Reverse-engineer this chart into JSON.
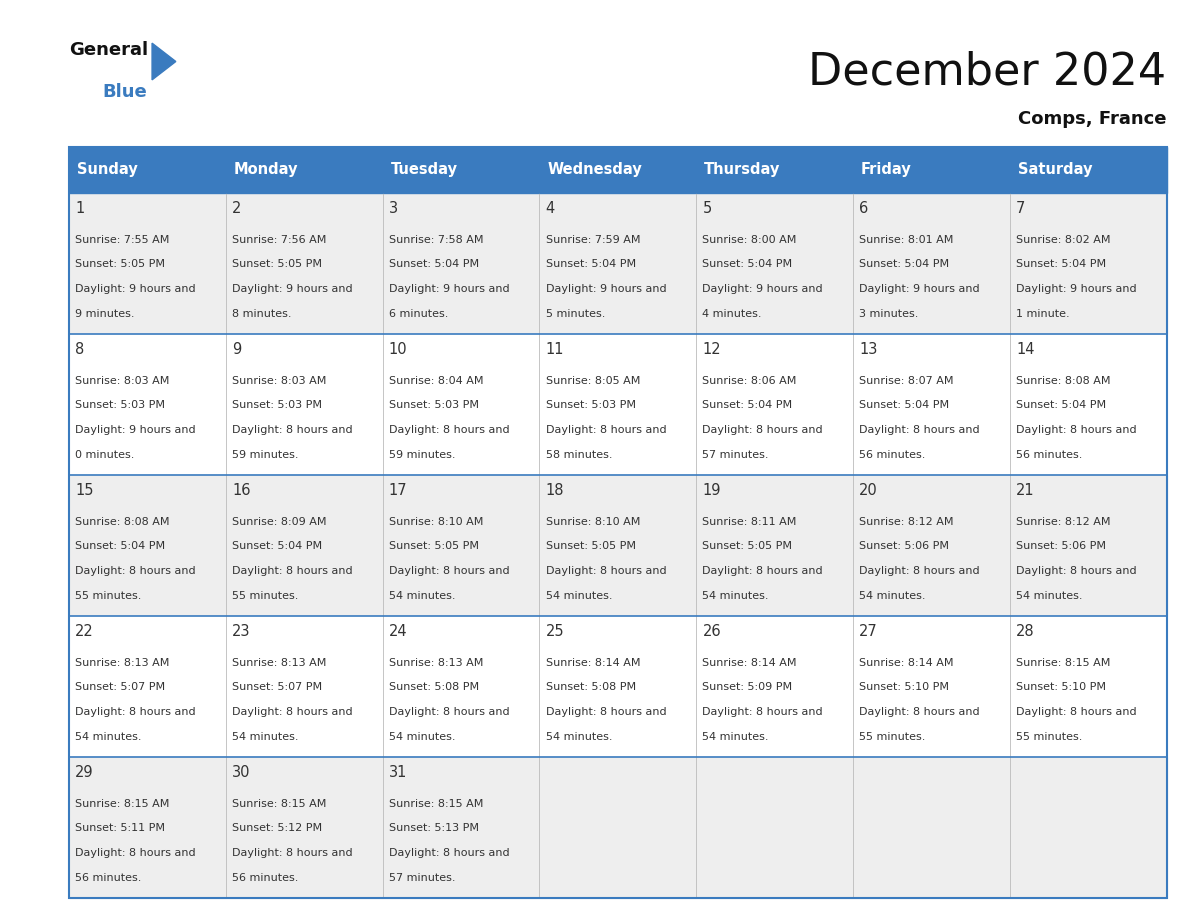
{
  "title": "December 2024",
  "subtitle": "Comps, France",
  "header_color": "#3a7bbf",
  "header_text_color": "#ffffff",
  "day_names": [
    "Sunday",
    "Monday",
    "Tuesday",
    "Wednesday",
    "Thursday",
    "Friday",
    "Saturday"
  ],
  "bg_color": "#ffffff",
  "cell_bg_even": "#eeeeee",
  "cell_bg_odd": "#ffffff",
  "separator_color": "#3a7bbf",
  "text_color": "#333333",
  "days": [
    {
      "date": 1,
      "col": 0,
      "row": 0,
      "sunrise": "7:55 AM",
      "sunset": "5:05 PM",
      "daylight": "9 hours and 9 minutes."
    },
    {
      "date": 2,
      "col": 1,
      "row": 0,
      "sunrise": "7:56 AM",
      "sunset": "5:05 PM",
      "daylight": "9 hours and 8 minutes."
    },
    {
      "date": 3,
      "col": 2,
      "row": 0,
      "sunrise": "7:58 AM",
      "sunset": "5:04 PM",
      "daylight": "9 hours and 6 minutes."
    },
    {
      "date": 4,
      "col": 3,
      "row": 0,
      "sunrise": "7:59 AM",
      "sunset": "5:04 PM",
      "daylight": "9 hours and 5 minutes."
    },
    {
      "date": 5,
      "col": 4,
      "row": 0,
      "sunrise": "8:00 AM",
      "sunset": "5:04 PM",
      "daylight": "9 hours and 4 minutes."
    },
    {
      "date": 6,
      "col": 5,
      "row": 0,
      "sunrise": "8:01 AM",
      "sunset": "5:04 PM",
      "daylight": "9 hours and 3 minutes."
    },
    {
      "date": 7,
      "col": 6,
      "row": 0,
      "sunrise": "8:02 AM",
      "sunset": "5:04 PM",
      "daylight": "9 hours and 1 minute."
    },
    {
      "date": 8,
      "col": 0,
      "row": 1,
      "sunrise": "8:03 AM",
      "sunset": "5:03 PM",
      "daylight": "9 hours and 0 minutes."
    },
    {
      "date": 9,
      "col": 1,
      "row": 1,
      "sunrise": "8:03 AM",
      "sunset": "5:03 PM",
      "daylight": "8 hours and 59 minutes."
    },
    {
      "date": 10,
      "col": 2,
      "row": 1,
      "sunrise": "8:04 AM",
      "sunset": "5:03 PM",
      "daylight": "8 hours and 59 minutes."
    },
    {
      "date": 11,
      "col": 3,
      "row": 1,
      "sunrise": "8:05 AM",
      "sunset": "5:03 PM",
      "daylight": "8 hours and 58 minutes."
    },
    {
      "date": 12,
      "col": 4,
      "row": 1,
      "sunrise": "8:06 AM",
      "sunset": "5:04 PM",
      "daylight": "8 hours and 57 minutes."
    },
    {
      "date": 13,
      "col": 5,
      "row": 1,
      "sunrise": "8:07 AM",
      "sunset": "5:04 PM",
      "daylight": "8 hours and 56 minutes."
    },
    {
      "date": 14,
      "col": 6,
      "row": 1,
      "sunrise": "8:08 AM",
      "sunset": "5:04 PM",
      "daylight": "8 hours and 56 minutes."
    },
    {
      "date": 15,
      "col": 0,
      "row": 2,
      "sunrise": "8:08 AM",
      "sunset": "5:04 PM",
      "daylight": "8 hours and 55 minutes."
    },
    {
      "date": 16,
      "col": 1,
      "row": 2,
      "sunrise": "8:09 AM",
      "sunset": "5:04 PM",
      "daylight": "8 hours and 55 minutes."
    },
    {
      "date": 17,
      "col": 2,
      "row": 2,
      "sunrise": "8:10 AM",
      "sunset": "5:05 PM",
      "daylight": "8 hours and 54 minutes."
    },
    {
      "date": 18,
      "col": 3,
      "row": 2,
      "sunrise": "8:10 AM",
      "sunset": "5:05 PM",
      "daylight": "8 hours and 54 minutes."
    },
    {
      "date": 19,
      "col": 4,
      "row": 2,
      "sunrise": "8:11 AM",
      "sunset": "5:05 PM",
      "daylight": "8 hours and 54 minutes."
    },
    {
      "date": 20,
      "col": 5,
      "row": 2,
      "sunrise": "8:12 AM",
      "sunset": "5:06 PM",
      "daylight": "8 hours and 54 minutes."
    },
    {
      "date": 21,
      "col": 6,
      "row": 2,
      "sunrise": "8:12 AM",
      "sunset": "5:06 PM",
      "daylight": "8 hours and 54 minutes."
    },
    {
      "date": 22,
      "col": 0,
      "row": 3,
      "sunrise": "8:13 AM",
      "sunset": "5:07 PM",
      "daylight": "8 hours and 54 minutes."
    },
    {
      "date": 23,
      "col": 1,
      "row": 3,
      "sunrise": "8:13 AM",
      "sunset": "5:07 PM",
      "daylight": "8 hours and 54 minutes."
    },
    {
      "date": 24,
      "col": 2,
      "row": 3,
      "sunrise": "8:13 AM",
      "sunset": "5:08 PM",
      "daylight": "8 hours and 54 minutes."
    },
    {
      "date": 25,
      "col": 3,
      "row": 3,
      "sunrise": "8:14 AM",
      "sunset": "5:08 PM",
      "daylight": "8 hours and 54 minutes."
    },
    {
      "date": 26,
      "col": 4,
      "row": 3,
      "sunrise": "8:14 AM",
      "sunset": "5:09 PM",
      "daylight": "8 hours and 54 minutes."
    },
    {
      "date": 27,
      "col": 5,
      "row": 3,
      "sunrise": "8:14 AM",
      "sunset": "5:10 PM",
      "daylight": "8 hours and 55 minutes."
    },
    {
      "date": 28,
      "col": 6,
      "row": 3,
      "sunrise": "8:15 AM",
      "sunset": "5:10 PM",
      "daylight": "8 hours and 55 minutes."
    },
    {
      "date": 29,
      "col": 0,
      "row": 4,
      "sunrise": "8:15 AM",
      "sunset": "5:11 PM",
      "daylight": "8 hours and 56 minutes."
    },
    {
      "date": 30,
      "col": 1,
      "row": 4,
      "sunrise": "8:15 AM",
      "sunset": "5:12 PM",
      "daylight": "8 hours and 56 minutes."
    },
    {
      "date": 31,
      "col": 2,
      "row": 4,
      "sunrise": "8:15 AM",
      "sunset": "5:13 PM",
      "daylight": "8 hours and 57 minutes."
    }
  ]
}
